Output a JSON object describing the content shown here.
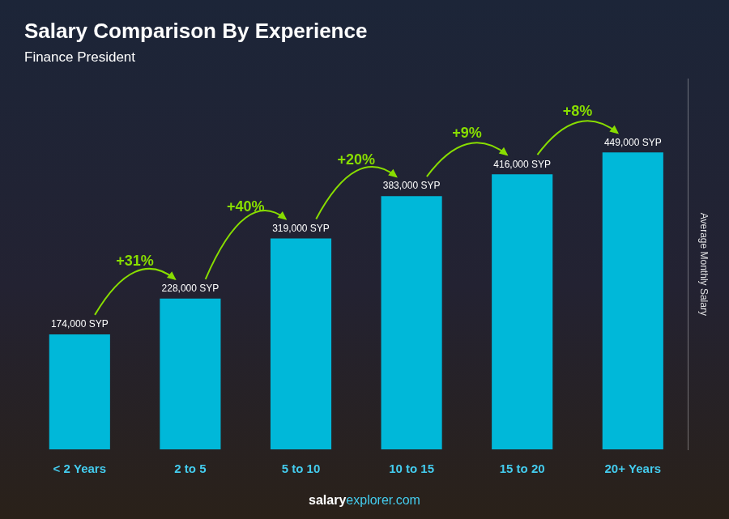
{
  "chart_data": {
    "type": "bar",
    "title": "Salary Comparison By Experience",
    "subtitle": "Finance President",
    "categories": [
      "< 2 Years",
      "2 to 5",
      "5 to 10",
      "10 to 15",
      "15 to 20",
      "20+ Years"
    ],
    "values": [
      174000,
      228000,
      319000,
      383000,
      416000,
      449000
    ],
    "value_labels": [
      "174,000 SYP",
      "228,000 SYP",
      "319,000 SYP",
      "383,000 SYP",
      "416,000 SYP",
      "449,000 SYP"
    ],
    "data_labels": true,
    "pct_labels": [
      "+31%",
      "+40%",
      "+20%",
      "+9%",
      "+8%"
    ],
    "ylabel": "Average Monthly Salary",
    "watermark": [
      "salary",
      "explorer.com"
    ],
    "color": "#00B8D9",
    "ylim": [
      0,
      560000
    ],
    "tick_labels": "x",
    "grid": false
  }
}
